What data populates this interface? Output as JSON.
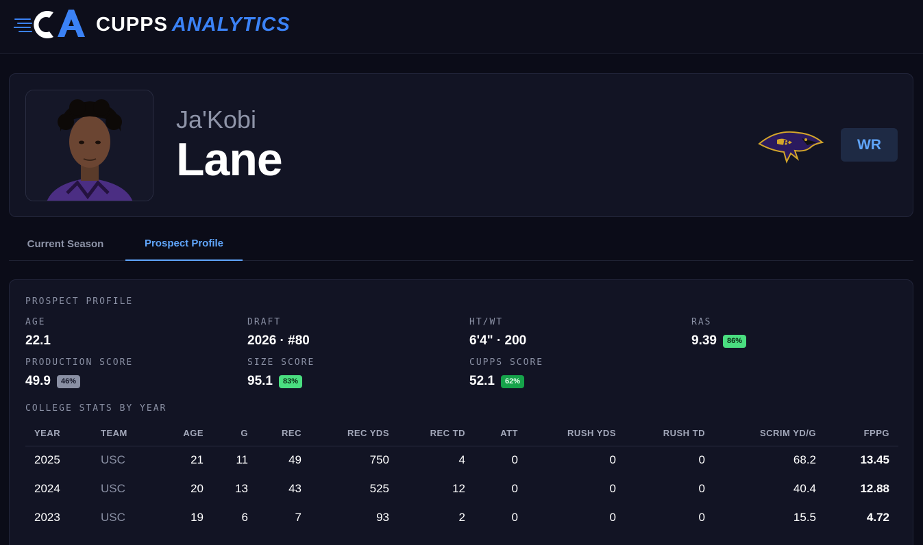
{
  "header": {
    "logo_text": "CA",
    "brand_primary": "CUPPS",
    "brand_secondary": "ANALYTICS",
    "accent_color": "#3b82f6"
  },
  "player": {
    "first_name": "Ja'Kobi",
    "last_name": "Lane",
    "position": "WR",
    "team_logo_icon": "ravens-logo-icon"
  },
  "tabs": [
    {
      "label": "Current Season",
      "active": false
    },
    {
      "label": "Prospect Profile",
      "active": true
    }
  ],
  "profile": {
    "title": "PROSPECT PROFILE",
    "stats": {
      "age": {
        "label": "AGE",
        "value": "22.1"
      },
      "draft": {
        "label": "DRAFT",
        "value": "2026 · #80"
      },
      "htwt": {
        "label": "HT/WT",
        "value": "6'4\" · 200"
      },
      "ras": {
        "label": "RAS",
        "value": "9.39",
        "pct": "86%"
      },
      "production": {
        "label": "PRODUCTION SCORE",
        "value": "49.9",
        "pct": "46%"
      },
      "size": {
        "label": "SIZE SCORE",
        "value": "95.1",
        "pct": "83%"
      },
      "cupps": {
        "label": "CUPPS SCORE",
        "value": "52.1",
        "pct": "62%"
      }
    },
    "college_title": "COLLEGE STATS BY YEAR",
    "columns": [
      "YEAR",
      "TEAM",
      "AGE",
      "G",
      "REC",
      "REC YDS",
      "REC TD",
      "ATT",
      "RUSH YDS",
      "RUSH TD",
      "SCRIM YD/G",
      "FPPG"
    ],
    "rows": [
      [
        "2025",
        "USC",
        "21",
        "11",
        "49",
        "750",
        "4",
        "0",
        "0",
        "0",
        "68.2",
        "13.45"
      ],
      [
        "2024",
        "USC",
        "20",
        "13",
        "43",
        "525",
        "12",
        "0",
        "0",
        "0",
        "40.4",
        "12.88"
      ],
      [
        "2023",
        "USC",
        "19",
        "6",
        "7",
        "93",
        "2",
        "0",
        "0",
        "0",
        "15.5",
        "4.72"
      ]
    ]
  }
}
